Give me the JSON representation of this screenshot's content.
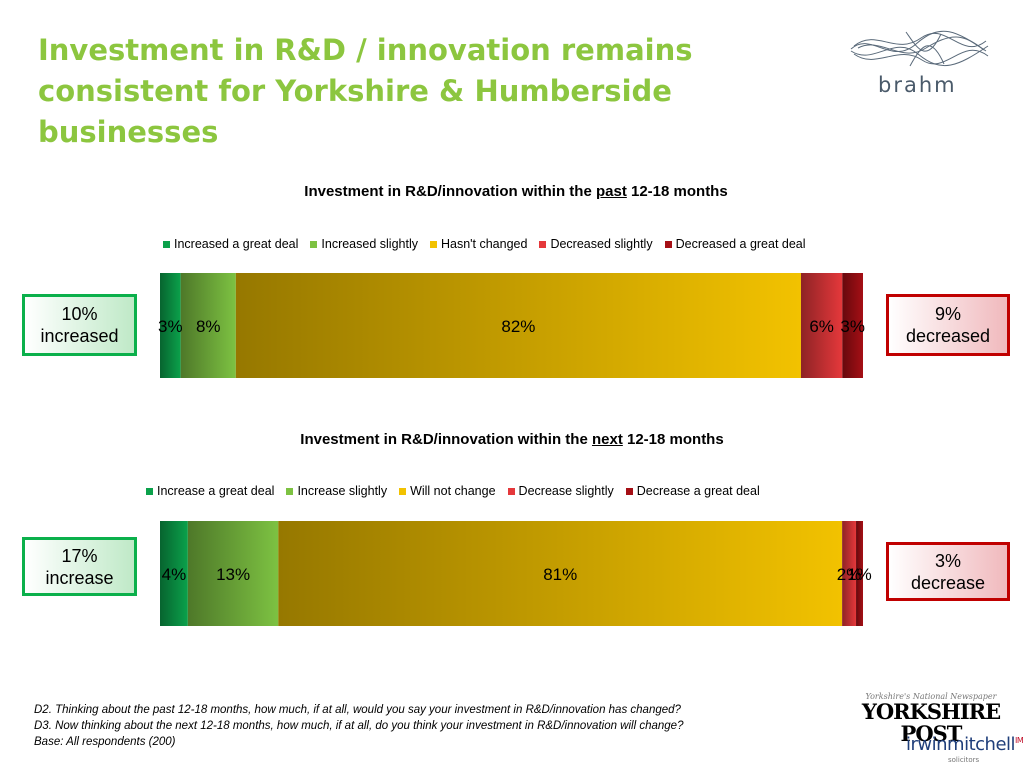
{
  "slide": {
    "title": "Investment in R&D / innovation remains consistent for Yorkshire & Humberside businesses",
    "footnotes": [
      "D2. Thinking about the past 12-18 months, how much, if at all, would you say your investment in R&D/innovation has changed?",
      "D3. Now thinking about the next 12-18 months, how much, if at all, do you think your investment in R&D/innovation will change?",
      "Base: All respondents (200)"
    ]
  },
  "logos": {
    "brahm": "brahm",
    "yorkshire_post_tag": "Yorkshire's National Newspaper",
    "yorkshire_post": "YORKSHIRE POST",
    "irwin_a": "irwin",
    "irwin_b": "mitchell",
    "irwin_sup": "IM",
    "irwin_sub": "solicitors"
  },
  "colors": {
    "title": "#8CC63F",
    "green_dark": "#0BA14B",
    "green_light": "#7DC242",
    "gold": "#F2C200",
    "red_light": "#E5383B",
    "red_dark": "#A50F15"
  },
  "chart_data": [
    {
      "type": "bar",
      "orientation": "horizontal-stacked-100",
      "title_pre": "Investment in R&D/innovation within the ",
      "title_key": "past",
      "title_post": " 12-18 months",
      "series": [
        {
          "name": "Increased a great deal",
          "values": [
            3
          ],
          "label": "3%",
          "color": "#0BA14B"
        },
        {
          "name": "Increased slightly",
          "values": [
            8
          ],
          "label": "8%",
          "color": "#7DC242"
        },
        {
          "name": "Hasn't changed",
          "values": [
            82
          ],
          "label": "82%",
          "color": "#F2C200"
        },
        {
          "name": "Decreased slightly",
          "values": [
            6
          ],
          "label": "6%",
          "color": "#E5383B"
        },
        {
          "name": "Decreased a great deal",
          "values": [
            3
          ],
          "label": "3%",
          "color": "#A50F15"
        }
      ],
      "callouts": {
        "left": [
          "10%",
          "increased"
        ],
        "right": [
          "9%",
          "decreased"
        ]
      }
    },
    {
      "type": "bar",
      "orientation": "horizontal-stacked-100",
      "title_pre": "Investment in R&D/innovation within the ",
      "title_key": "next",
      "title_post": " 12-18 months",
      "series": [
        {
          "name": "Increase a great deal",
          "values": [
            4
          ],
          "label": "4%",
          "color": "#0BA14B"
        },
        {
          "name": "Increase slightly",
          "values": [
            13
          ],
          "label": "13%",
          "color": "#7DC242"
        },
        {
          "name": "Will not change",
          "values": [
            81
          ],
          "label": "81%",
          "color": "#F2C200"
        },
        {
          "name": "Decrease slightly",
          "values": [
            2
          ],
          "label": "2%",
          "color": "#E5383B"
        },
        {
          "name": "Decrease a great deal",
          "values": [
            1
          ],
          "label": "1%",
          "color": "#A50F15"
        }
      ],
      "callouts": {
        "left": [
          "17%",
          "increase"
        ],
        "right": [
          "3%",
          "decrease"
        ]
      }
    }
  ]
}
